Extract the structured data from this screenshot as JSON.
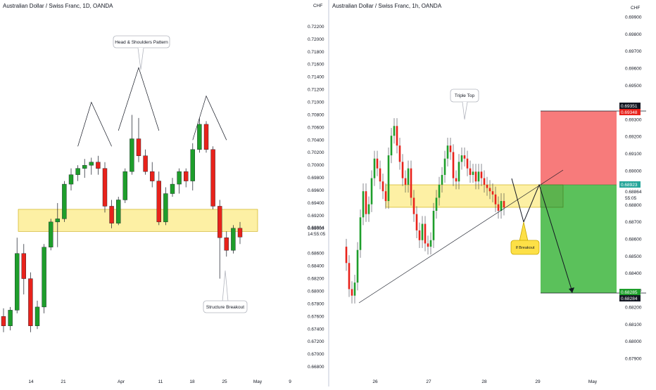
{
  "left_chart": {
    "title": "Australian Dollar / Swiss Franc, 1D, OANDA",
    "currency": "CHF",
    "y_ticks": [
      "0.72200",
      "0.72000",
      "0.71800",
      "0.71600",
      "0.71400",
      "0.71200",
      "0.71000",
      "0.70800",
      "0.70600",
      "0.70400",
      "0.70200",
      "0.70000",
      "0.69800",
      "0.69600",
      "0.69400",
      "0.69200",
      "0.69000",
      "0.68600",
      "0.68400",
      "0.68200",
      "0.68000",
      "0.67800",
      "0.67600",
      "0.67400",
      "0.67200",
      "0.67000",
      "0.66800"
    ],
    "x_ticks": [
      "14",
      "21",
      "Apr",
      "11",
      "18",
      "25",
      "May",
      "9"
    ],
    "price_label": "0.68864",
    "countdown_label": "14:55:05",
    "annotations": {
      "head_shoulders": "Head & Shoulders Pattern",
      "structure_breakout": "Structure Breakout"
    }
  },
  "right_chart": {
    "title": "Australian Dollar / Swiss Franc, 1h, OANDA",
    "currency": "CHF",
    "y_ticks": [
      "0.69900",
      "0.69800",
      "0.69700",
      "0.69600",
      "0.69500",
      "0.69300",
      "0.69200",
      "0.69100",
      "0.69000",
      "0.68800",
      "0.68700",
      "0.68600",
      "0.68500",
      "0.68400",
      "0.68300",
      "0.68200",
      "0.68100",
      "0.68000",
      "0.67900"
    ],
    "x_ticks": [
      "26",
      "27",
      "28",
      "29",
      "May"
    ],
    "price_label": "0.68864",
    "countdown_label": "55:05",
    "stop_label": "0.69351",
    "stop_label_2": "0.69348",
    "entry_label": "0.68923",
    "target_label": "0.68285",
    "target_label_2": "0.68284",
    "annotations": {
      "triple_top": "Triple Top",
      "if_breakout": "If Breakout"
    }
  },
  "colors": {
    "bull": "#1e9e2b",
    "bear": "#e8221b",
    "zone": "#fdf0a4",
    "stop_zone": "#f77b7b",
    "target_zone": "#5bc15b",
    "callout_yellow": "#fde047"
  },
  "chart_data": [
    {
      "type": "candlestick",
      "title": "Australian Dollar / Swiss Franc, 1D, OANDA",
      "ylabel": "CHF",
      "ylim": [
        0.666,
        0.724
      ],
      "x_ticks": [
        "14",
        "21",
        "Apr",
        "11",
        "18",
        "25",
        "May",
        "9"
      ],
      "candles": [
        {
          "o": 0.676,
          "h": 0.6773,
          "l": 0.6735,
          "c": 0.6745
        },
        {
          "o": 0.6745,
          "h": 0.6775,
          "l": 0.6738,
          "c": 0.677
        },
        {
          "o": 0.677,
          "h": 0.6885,
          "l": 0.6765,
          "c": 0.686
        },
        {
          "o": 0.686,
          "h": 0.6875,
          "l": 0.6795,
          "c": 0.682
        },
        {
          "o": 0.682,
          "h": 0.683,
          "l": 0.6735,
          "c": 0.6745
        },
        {
          "o": 0.6745,
          "h": 0.6785,
          "l": 0.674,
          "c": 0.6775
        },
        {
          "o": 0.6775,
          "h": 0.6875,
          "l": 0.6765,
          "c": 0.687
        },
        {
          "o": 0.687,
          "h": 0.6915,
          "l": 0.6865,
          "c": 0.691
        },
        {
          "o": 0.691,
          "h": 0.694,
          "l": 0.687,
          "c": 0.6915
        },
        {
          "o": 0.6915,
          "h": 0.6975,
          "l": 0.691,
          "c": 0.697
        },
        {
          "o": 0.697,
          "h": 0.6995,
          "l": 0.696,
          "c": 0.6985
        },
        {
          "o": 0.6985,
          "h": 0.7,
          "l": 0.6975,
          "c": 0.6995
        },
        {
          "o": 0.6995,
          "h": 0.701,
          "l": 0.698,
          "c": 0.7
        },
        {
          "o": 0.7,
          "h": 0.7012,
          "l": 0.6985,
          "c": 0.7005
        },
        {
          "o": 0.7005,
          "h": 0.7015,
          "l": 0.6985,
          "c": 0.6995
        },
        {
          "o": 0.6995,
          "h": 0.7005,
          "l": 0.6925,
          "c": 0.6935
        },
        {
          "o": 0.6935,
          "h": 0.6945,
          "l": 0.69,
          "c": 0.6908
        },
        {
          "o": 0.6908,
          "h": 0.695,
          "l": 0.6905,
          "c": 0.6945
        },
        {
          "o": 0.6945,
          "h": 0.6995,
          "l": 0.694,
          "c": 0.699
        },
        {
          "o": 0.699,
          "h": 0.708,
          "l": 0.6985,
          "c": 0.7042
        },
        {
          "o": 0.7042,
          "h": 0.7075,
          "l": 0.7005,
          "c": 0.7015
        },
        {
          "o": 0.7015,
          "h": 0.7025,
          "l": 0.6985,
          "c": 0.699
        },
        {
          "o": 0.699,
          "h": 0.7005,
          "l": 0.6965,
          "c": 0.6975
        },
        {
          "o": 0.6975,
          "h": 0.699,
          "l": 0.6905,
          "c": 0.691
        },
        {
          "o": 0.691,
          "h": 0.6965,
          "l": 0.6905,
          "c": 0.6955
        },
        {
          "o": 0.6955,
          "h": 0.698,
          "l": 0.695,
          "c": 0.697
        },
        {
          "o": 0.697,
          "h": 0.6995,
          "l": 0.6955,
          "c": 0.699
        },
        {
          "o": 0.699,
          "h": 0.6995,
          "l": 0.6965,
          "c": 0.6975
        },
        {
          "o": 0.6975,
          "h": 0.7035,
          "l": 0.696,
          "c": 0.7025
        },
        {
          "o": 0.7025,
          "h": 0.7075,
          "l": 0.702,
          "c": 0.7065
        },
        {
          "o": 0.7065,
          "h": 0.707,
          "l": 0.702,
          "c": 0.7025
        },
        {
          "o": 0.7025,
          "h": 0.703,
          "l": 0.693,
          "c": 0.6935
        },
        {
          "o": 0.6935,
          "h": 0.6945,
          "l": 0.682,
          "c": 0.6885
        },
        {
          "o": 0.6885,
          "h": 0.6895,
          "l": 0.6855,
          "c": 0.6865
        },
        {
          "o": 0.6865,
          "h": 0.6905,
          "l": 0.686,
          "c": 0.69
        },
        {
          "o": 0.69,
          "h": 0.691,
          "l": 0.6875,
          "c": 0.6886
        }
      ],
      "zone": {
        "from": 0.6895,
        "to": 0.693
      },
      "annotations": [
        "Head & Shoulders Pattern",
        "Structure Breakout"
      ]
    },
    {
      "type": "candlestick",
      "title": "Australian Dollar / Swiss Franc, 1h, OANDA",
      "ylabel": "CHF",
      "ylim": [
        0.6785,
        0.7
      ],
      "x_ticks": [
        "26",
        "27",
        "28",
        "29",
        "May"
      ],
      "zone": {
        "from": 0.6893,
        "to": 0.6928
      },
      "position": {
        "stop": 0.69351,
        "entry": 0.68923,
        "target": 0.68285
      },
      "trendline": {
        "from": 0.6772,
        "to": 0.6893
      },
      "annotations": [
        "Triple Top",
        "If Breakout"
      ]
    }
  ]
}
